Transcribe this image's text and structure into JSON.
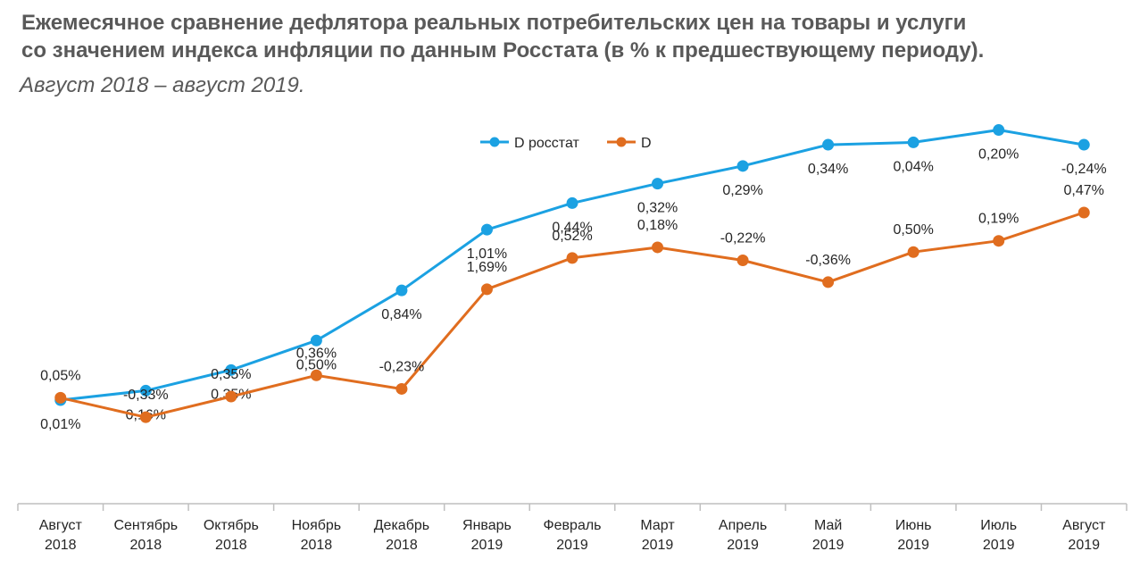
{
  "header": {
    "title_line1": "Ежемесячное сравнение дефлятора реальных потребительских цен на товары и услуги",
    "title_line2": "со значением индекса инфляции по данным Росстата (в % к предшествующему периоду).",
    "subtitle": "Август 2018 – август 2019."
  },
  "chart_data": {
    "type": "line",
    "categories": [
      [
        "Август",
        "2018"
      ],
      [
        "Сентябрь",
        "2018"
      ],
      [
        "Октябрь",
        "2018"
      ],
      [
        "Ноябрь",
        "2018"
      ],
      [
        "Декабрь",
        "2018"
      ],
      [
        "Январь",
        "2019"
      ],
      [
        "Февраль",
        "2019"
      ],
      [
        "Март",
        "2019"
      ],
      [
        "Апрель",
        "2019"
      ],
      [
        "Май",
        "2019"
      ],
      [
        "Июнь",
        "2019"
      ],
      [
        "Июль",
        "2019"
      ],
      [
        "Август",
        "2019"
      ]
    ],
    "legend_position": "top",
    "grid": false,
    "series": [
      {
        "name": "D росстат",
        "color": "#1BA1E2",
        "labels": [
          "0,01%",
          "0,16%",
          "0,35%",
          "0,50%",
          "0,84%",
          "1,01%",
          "0,44%",
          "0,32%",
          "0,29%",
          "0,34%",
          "0,04%",
          "0,20%",
          "-0,24%"
        ],
        "values": [
          0.01,
          0.16,
          0.35,
          0.5,
          0.84,
          1.01,
          0.44,
          0.32,
          0.29,
          0.34,
          0.04,
          0.2,
          -0.24
        ],
        "cumulative": [
          0.01,
          0.17,
          0.52,
          1.02,
          1.87,
          2.9,
          3.35,
          3.68,
          3.98,
          4.34,
          4.38,
          4.59,
          4.34
        ]
      },
      {
        "name": "D",
        "color": "#E06D1F",
        "labels": [
          "0,05%",
          "-0,33%",
          "0,35%",
          "0,36%",
          "-0,23%",
          "1,69%",
          "0,52%",
          "0,18%",
          "-0,22%",
          "-0,36%",
          "0,50%",
          "0,19%",
          "0,47%"
        ],
        "values": [
          0.05,
          -0.33,
          0.35,
          0.36,
          -0.23,
          1.69,
          0.52,
          0.18,
          -0.22,
          -0.36,
          0.5,
          0.19,
          0.47
        ],
        "cumulative": [
          0.05,
          -0.28,
          0.07,
          0.43,
          0.2,
          1.89,
          2.42,
          2.6,
          2.38,
          2.01,
          2.52,
          2.71,
          3.19
        ]
      }
    ]
  }
}
